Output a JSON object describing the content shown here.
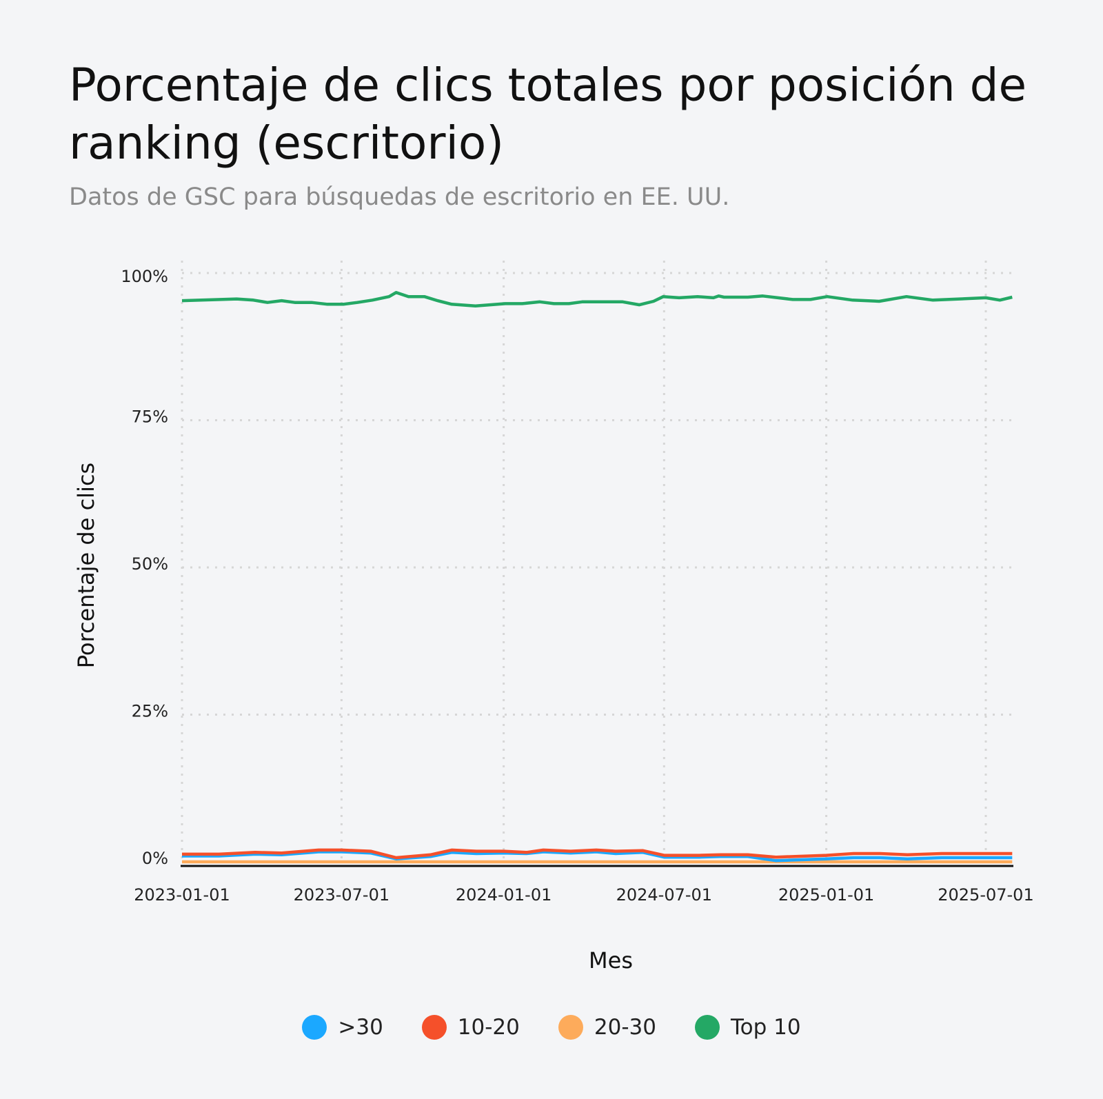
{
  "title": "Porcentaje de clics totales por posición de ranking (escritorio)",
  "subtitle": "Datos de GSC para búsquedas de escritorio en EE. UU.",
  "chart_data": {
    "type": "line",
    "title": "Porcentaje de clics totales por posición de ranking (escritorio)",
    "subtitle": "Datos de GSC para búsquedas de escritorio en EE. UU.",
    "xlabel": "Mes",
    "ylabel": "Porcentaje de clics",
    "x_ticks": [
      "2023-01-01",
      "2023-07-01",
      "2024-01-01",
      "2024-07-01",
      "2025-01-01",
      "2025-07-01"
    ],
    "y_ticks": [
      0,
      25,
      50,
      75,
      100
    ],
    "y_tick_labels": [
      "0%",
      "25%",
      "50%",
      "75%",
      "100%"
    ],
    "xlim": [
      "2023-01-01",
      "2025-07-31"
    ],
    "ylim": [
      0,
      100
    ],
    "grid": "dotted",
    "legend_position": "bottom",
    "series": [
      {
        "name": ">30",
        "color": "#1ba8ff",
        "points": [
          [
            "2023-01-01",
            1.0
          ],
          [
            "2023-02-12",
            1.0
          ],
          [
            "2023-03-25",
            1.3
          ],
          [
            "2023-04-24",
            1.2
          ],
          [
            "2023-06-05",
            1.7
          ],
          [
            "2023-07-01",
            1.7
          ],
          [
            "2023-08-03",
            1.5
          ],
          [
            "2023-09-01",
            0.5
          ],
          [
            "2023-10-10",
            0.9
          ],
          [
            "2023-11-03",
            1.6
          ],
          [
            "2023-12-01",
            1.4
          ],
          [
            "2024-01-01",
            1.5
          ],
          [
            "2024-01-27",
            1.4
          ],
          [
            "2024-02-15",
            1.7
          ],
          [
            "2024-03-17",
            1.5
          ],
          [
            "2024-04-15",
            1.7
          ],
          [
            "2024-05-07",
            1.4
          ],
          [
            "2024-06-07",
            1.6
          ],
          [
            "2024-07-01",
            0.8
          ],
          [
            "2024-08-10",
            0.8
          ],
          [
            "2024-09-03",
            0.9
          ],
          [
            "2024-10-04",
            0.9
          ],
          [
            "2024-11-05",
            0.2
          ],
          [
            "2025-01-01",
            0.5
          ],
          [
            "2025-02-01",
            0.7
          ],
          [
            "2025-03-03",
            0.7
          ],
          [
            "2025-04-03",
            0.5
          ],
          [
            "2025-05-12",
            0.7
          ],
          [
            "2025-07-31",
            0.7
          ]
        ]
      },
      {
        "name": "10-20",
        "color": "#f5502a",
        "points": [
          [
            "2023-01-01",
            1.3
          ],
          [
            "2023-02-12",
            1.3
          ],
          [
            "2023-03-25",
            1.6
          ],
          [
            "2023-04-24",
            1.5
          ],
          [
            "2023-06-05",
            2.0
          ],
          [
            "2023-07-01",
            2.0
          ],
          [
            "2023-08-03",
            1.8
          ],
          [
            "2023-09-01",
            0.7
          ],
          [
            "2023-10-10",
            1.2
          ],
          [
            "2023-11-03",
            2.0
          ],
          [
            "2023-12-01",
            1.8
          ],
          [
            "2024-01-01",
            1.8
          ],
          [
            "2024-01-27",
            1.6
          ],
          [
            "2024-02-15",
            2.0
          ],
          [
            "2024-03-17",
            1.8
          ],
          [
            "2024-04-15",
            2.0
          ],
          [
            "2024-05-07",
            1.8
          ],
          [
            "2024-06-07",
            1.9
          ],
          [
            "2024-07-01",
            1.1
          ],
          [
            "2024-08-10",
            1.1
          ],
          [
            "2024-09-03",
            1.2
          ],
          [
            "2024-10-04",
            1.2
          ],
          [
            "2024-11-05",
            0.8
          ],
          [
            "2025-01-01",
            1.1
          ],
          [
            "2025-02-01",
            1.4
          ],
          [
            "2025-03-03",
            1.4
          ],
          [
            "2025-04-03",
            1.2
          ],
          [
            "2025-05-12",
            1.4
          ],
          [
            "2025-07-31",
            1.4
          ]
        ]
      },
      {
        "name": "20-30",
        "color": "#fdab5b",
        "points": [
          [
            "2023-01-01",
            0.0
          ],
          [
            "2025-07-31",
            0.0
          ]
        ]
      },
      {
        "name": "Top 10",
        "color": "#24a865",
        "points": [
          [
            "2023-01-01",
            95.3
          ],
          [
            "2023-03-04",
            95.6
          ],
          [
            "2023-03-23",
            95.4
          ],
          [
            "2023-04-08",
            95.0
          ],
          [
            "2023-04-24",
            95.3
          ],
          [
            "2023-05-09",
            95.0
          ],
          [
            "2023-05-28",
            95.0
          ],
          [
            "2023-06-15",
            94.7
          ],
          [
            "2023-07-03",
            94.7
          ],
          [
            "2023-07-19",
            95.0
          ],
          [
            "2023-08-05",
            95.4
          ],
          [
            "2023-08-24",
            96.0
          ],
          [
            "2023-09-01",
            96.7
          ],
          [
            "2023-09-15",
            96.0
          ],
          [
            "2023-10-03",
            96.0
          ],
          [
            "2023-10-18",
            95.3
          ],
          [
            "2023-11-03",
            94.7
          ],
          [
            "2023-11-30",
            94.4
          ],
          [
            "2024-01-03",
            94.8
          ],
          [
            "2024-01-22",
            94.8
          ],
          [
            "2024-02-11",
            95.1
          ],
          [
            "2024-02-27",
            94.8
          ],
          [
            "2024-03-15",
            94.8
          ],
          [
            "2024-03-30",
            95.1
          ],
          [
            "2024-05-15",
            95.1
          ],
          [
            "2024-06-03",
            94.6
          ],
          [
            "2024-06-19",
            95.2
          ],
          [
            "2024-06-30",
            96.0
          ],
          [
            "2024-07-18",
            95.8
          ],
          [
            "2024-08-08",
            96.0
          ],
          [
            "2024-08-26",
            95.8
          ],
          [
            "2024-09-01",
            96.1
          ],
          [
            "2024-09-07",
            95.9
          ],
          [
            "2024-10-04",
            95.9
          ],
          [
            "2024-10-21",
            96.1
          ],
          [
            "2024-11-24",
            95.5
          ],
          [
            "2024-12-14",
            95.5
          ],
          [
            "2025-01-02",
            96.0
          ],
          [
            "2025-01-31",
            95.4
          ],
          [
            "2025-03-02",
            95.2
          ],
          [
            "2025-04-02",
            96.0
          ],
          [
            "2025-05-02",
            95.4
          ],
          [
            "2025-07-01",
            95.8
          ],
          [
            "2025-07-17",
            95.4
          ],
          [
            "2025-07-31",
            95.9
          ]
        ]
      }
    ]
  }
}
